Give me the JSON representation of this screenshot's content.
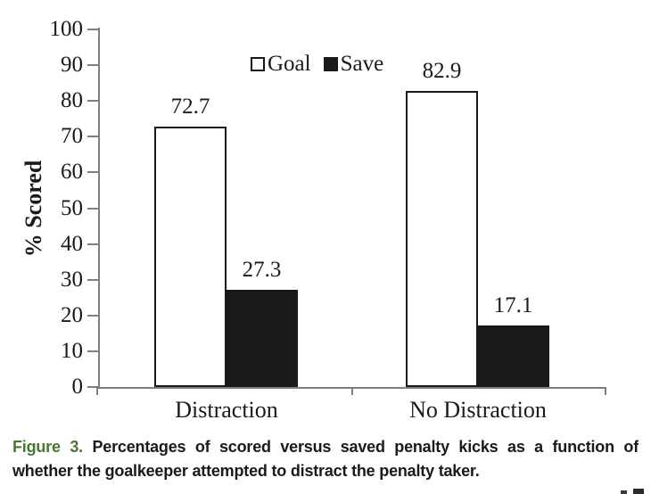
{
  "caption": {
    "label": "Figure 3.",
    "label_color": "#48772e",
    "text_line1": "Percentages of scored versus saved penalty kicks as a function of",
    "text_line2": "whether the goalkeeper attempted to distract the penalty taker."
  },
  "chart_data": {
    "type": "bar",
    "title": "",
    "xlabel": "",
    "ylabel": "% Scored",
    "ylim": [
      0,
      100
    ],
    "yticks": [
      0,
      10,
      20,
      30,
      40,
      50,
      60,
      70,
      80,
      90,
      100
    ],
    "categories": [
      "Distraction",
      "No Distraction"
    ],
    "series": [
      {
        "name": "Goal",
        "values": [
          72.7,
          82.9
        ],
        "fill": "#ffffff"
      },
      {
        "name": "Save",
        "values": [
          27.3,
          17.1
        ],
        "fill": "#1c1a18"
      }
    ],
    "bar_border_color": "#1a1a1a",
    "axis_color": "#7f7f7f",
    "value_labels_shown": true,
    "legend_position": "top-center",
    "grid": false
  }
}
